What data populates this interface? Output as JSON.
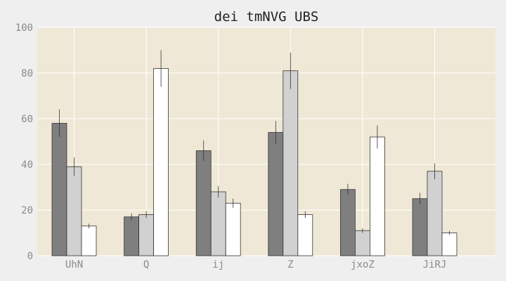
{
  "chart_data": {
    "type": "bar",
    "title": "dei tmNVG UBS",
    "xlabel": "",
    "ylabel": "",
    "ylim": [
      0,
      100
    ],
    "yticks": [
      0,
      20,
      40,
      60,
      80,
      100
    ],
    "grid": true,
    "categories": [
      "UhN",
      "Q",
      "ij",
      "Z",
      "jxoZ",
      "JiRJ"
    ],
    "series": [
      {
        "color": "#7f7f7f",
        "values": [
          58,
          17,
          46,
          54,
          29,
          25
        ],
        "errors": [
          6,
          1.5,
          4.5,
          5,
          2.5,
          2.5
        ]
      },
      {
        "color": "#d1d1d1",
        "values": [
          39,
          18,
          28,
          81,
          11,
          37
        ],
        "errors": [
          4,
          1.5,
          2.5,
          8,
          1,
          3.5
        ]
      },
      {
        "color": "#ffffff",
        "values": [
          13,
          82,
          23,
          18,
          null,
          10
        ],
        "errors": [
          1,
          8,
          2,
          1.5,
          null,
          0.8
        ]
      }
    ],
    "extra_bar": {
      "category": "jxoZ",
      "value": 52,
      "error": 5,
      "color": "#ffffff"
    },
    "colors": {
      "background": "#efefef",
      "plot_area": "#efe8d6",
      "grid": "#ffffff"
    }
  }
}
